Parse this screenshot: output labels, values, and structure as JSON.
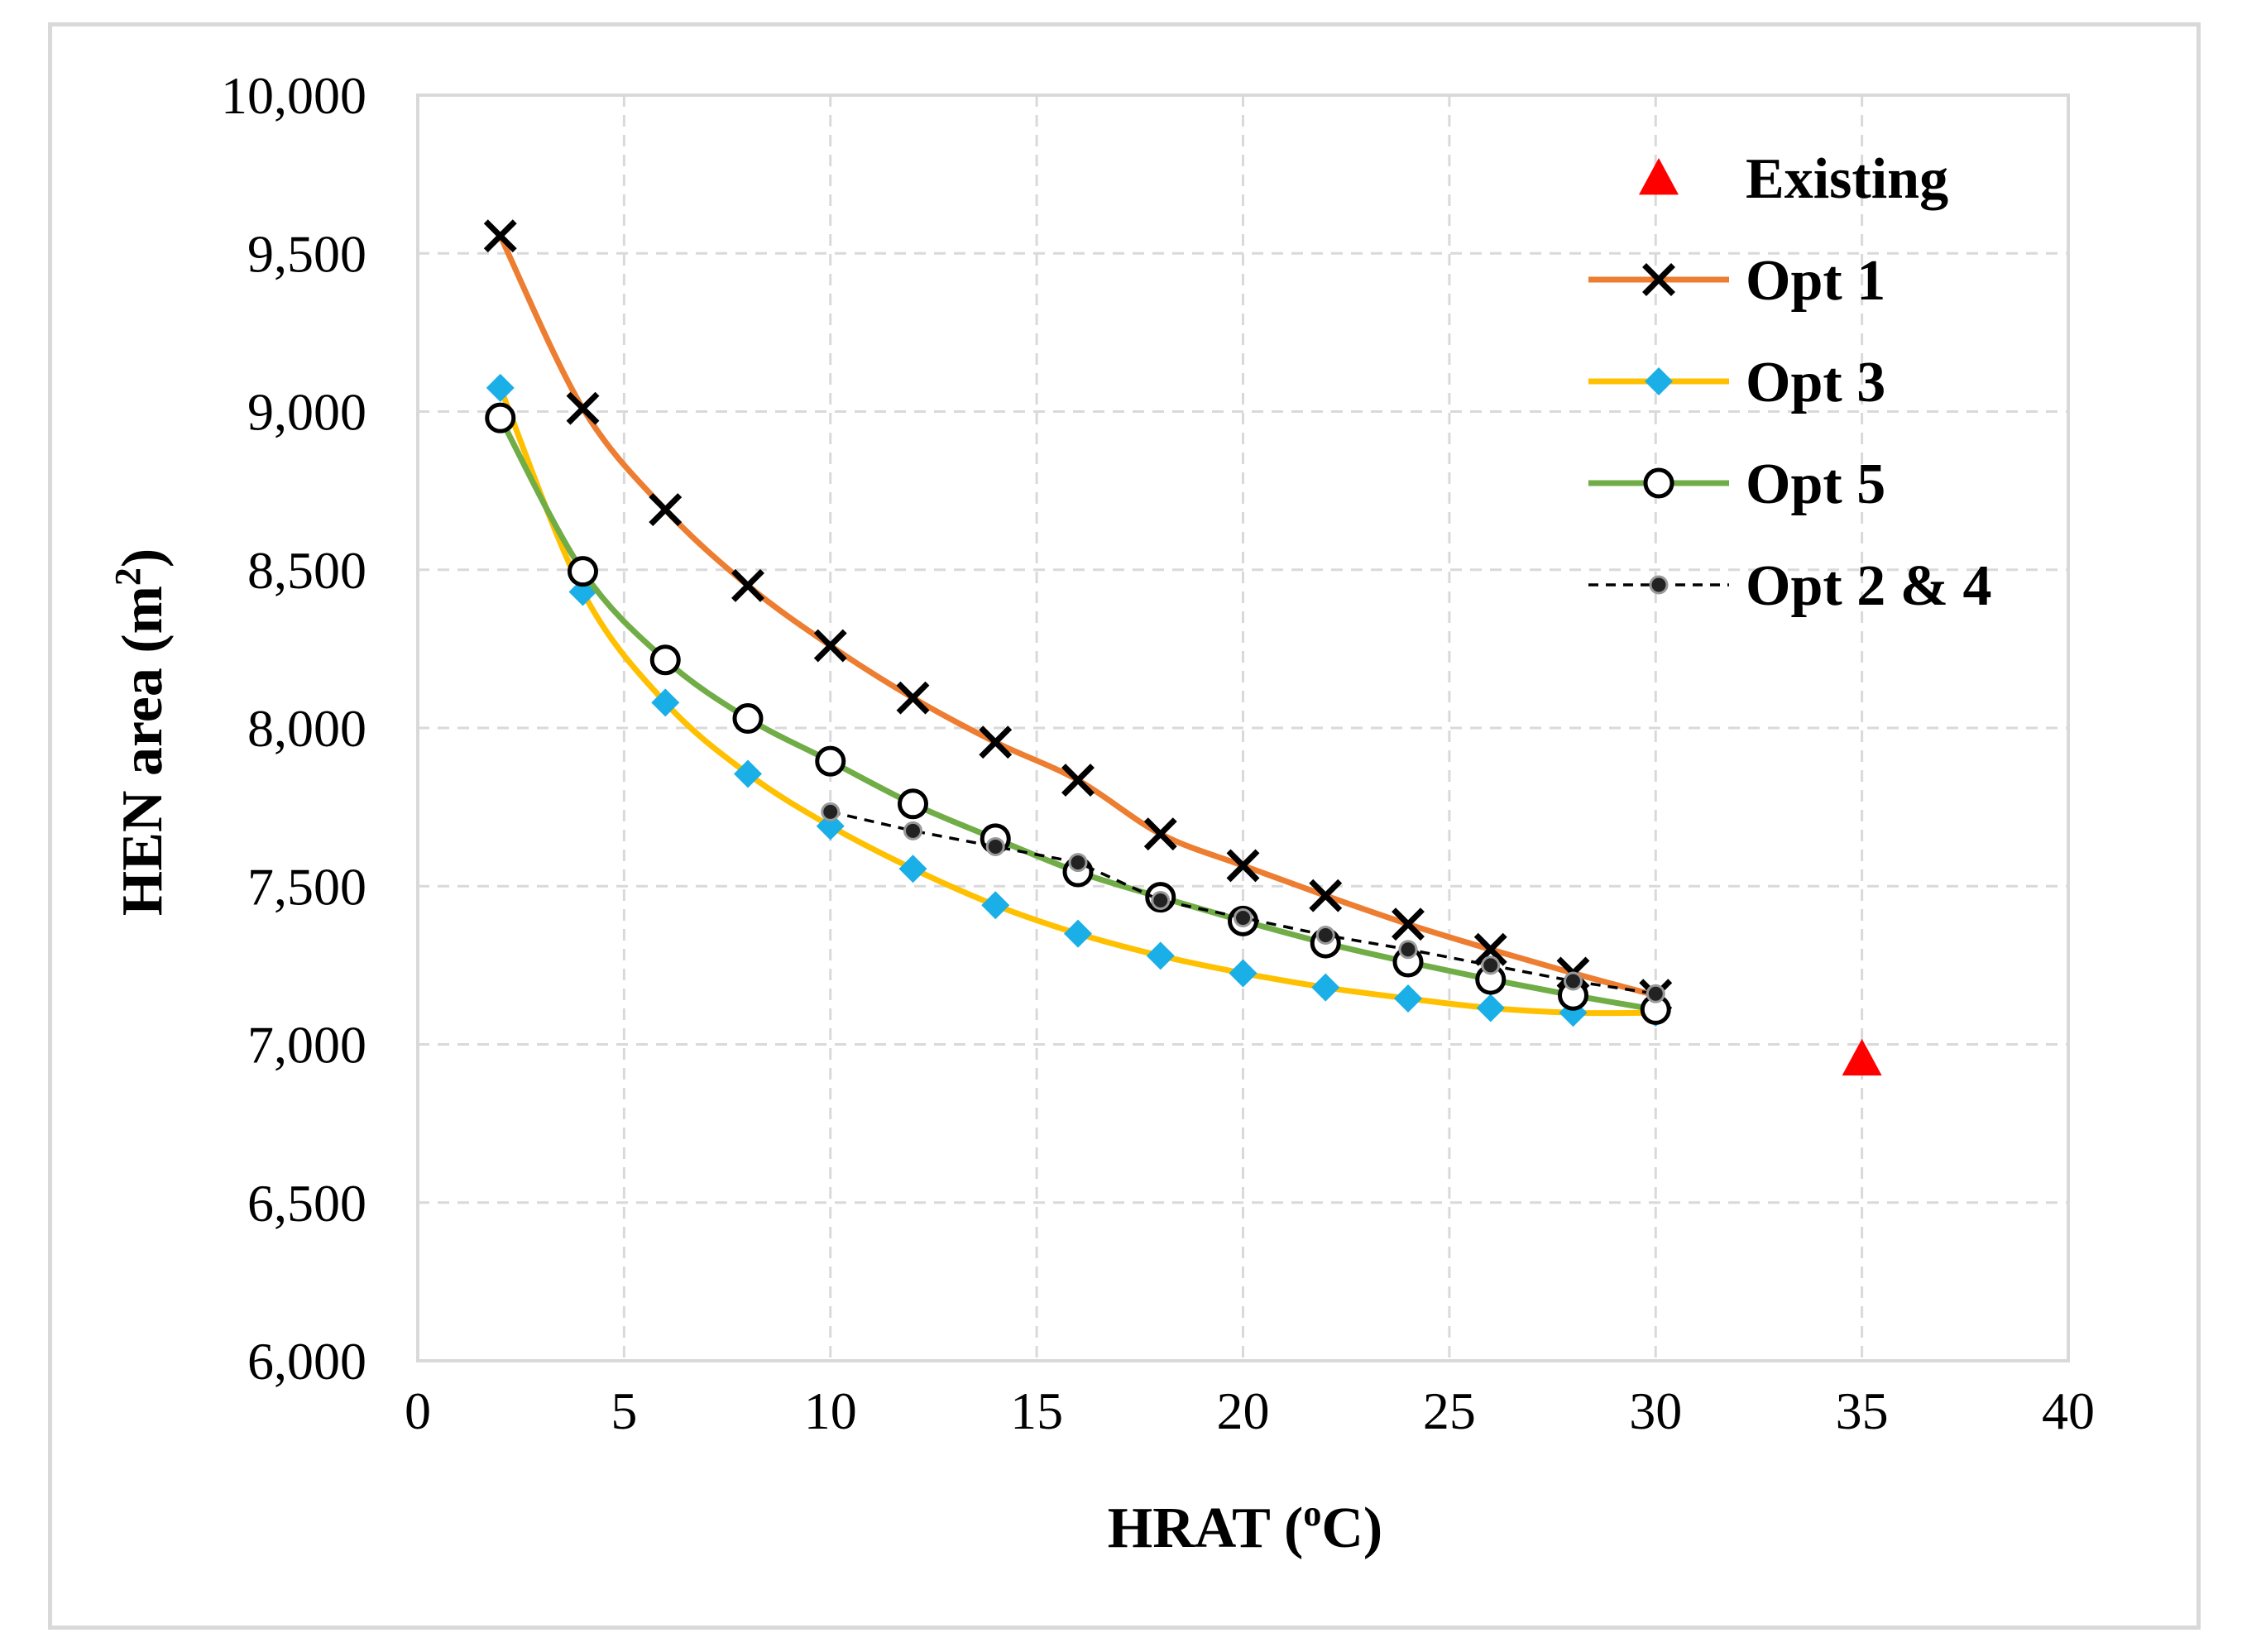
{
  "chart_data": {
    "type": "line",
    "title": "",
    "xlabel": "HRAT (",
    "xlabel_sup": "o",
    "xlabel_tail": "C)",
    "ylabel": "HEN area (m",
    "ylabel_sup": "2",
    "ylabel_tail": ")",
    "xlim": [
      0,
      40
    ],
    "ylim": [
      6000,
      10000
    ],
    "xticks": [
      0,
      5,
      10,
      15,
      20,
      25,
      30,
      35,
      40
    ],
    "yticks": [
      6000,
      6500,
      7000,
      7500,
      8000,
      8500,
      9000,
      9500,
      10000
    ],
    "xtick_labels": [
      "0",
      "5",
      "10",
      "15",
      "20",
      "25",
      "30",
      "35",
      "40"
    ],
    "ytick_labels": [
      "6,000",
      "6,500",
      "7,000",
      "7,500",
      "8,000",
      "8,500",
      "9,000",
      "9,500",
      "10,000"
    ],
    "grid": true,
    "legend_position": "top-right",
    "series": [
      {
        "name": "Existing",
        "style": "marker-only",
        "marker": "triangle",
        "color": "#ff0000",
        "x": [
          35
        ],
        "y": [
          6955
        ]
      },
      {
        "name": "Opt 1",
        "style": "smooth-line",
        "marker": "x",
        "color": "#ed7d31",
        "marker_color": "#000000",
        "x": [
          2,
          4,
          6,
          8,
          10,
          12,
          14,
          16,
          18,
          20,
          22,
          24,
          26,
          28,
          30
        ],
        "y": [
          9555,
          9010,
          8690,
          8450,
          8260,
          8095,
          7955,
          7835,
          7665,
          7565,
          7470,
          7380,
          7300,
          7225,
          7155
        ]
      },
      {
        "name": "Opt 3",
        "style": "smooth-line",
        "marker": "diamond",
        "color": "#ffc000",
        "marker_color": "#1aafe6",
        "x": [
          2,
          4,
          6,
          8,
          10,
          12,
          14,
          16,
          18,
          20,
          22,
          24,
          26,
          28,
          30
        ],
        "y": [
          9075,
          8430,
          8080,
          7855,
          7690,
          7555,
          7440,
          7350,
          7280,
          7225,
          7180,
          7145,
          7115,
          7100,
          7100
        ]
      },
      {
        "name": "Opt 5",
        "style": "smooth-line",
        "marker": "circle-open",
        "color": "#70ad47",
        "marker_color": "#000000",
        "x": [
          2,
          4,
          6,
          8,
          10,
          12,
          14,
          16,
          18,
          20,
          22,
          24,
          26,
          28,
          30
        ],
        "y": [
          8980,
          8495,
          8215,
          8030,
          7895,
          7760,
          7650,
          7545,
          7465,
          7390,
          7320,
          7260,
          7205,
          7155,
          7110
        ]
      },
      {
        "name": "Opt 2 & 4",
        "style": "dashed-line",
        "marker": "dot",
        "color": "#000000",
        "marker_color": "#222222",
        "x": [
          10,
          12,
          14,
          16,
          18,
          20,
          22,
          24,
          26,
          28,
          30
        ],
        "y": [
          7735,
          7675,
          7625,
          7575,
          7455,
          7400,
          7345,
          7300,
          7250,
          7200,
          7160
        ]
      }
    ]
  }
}
